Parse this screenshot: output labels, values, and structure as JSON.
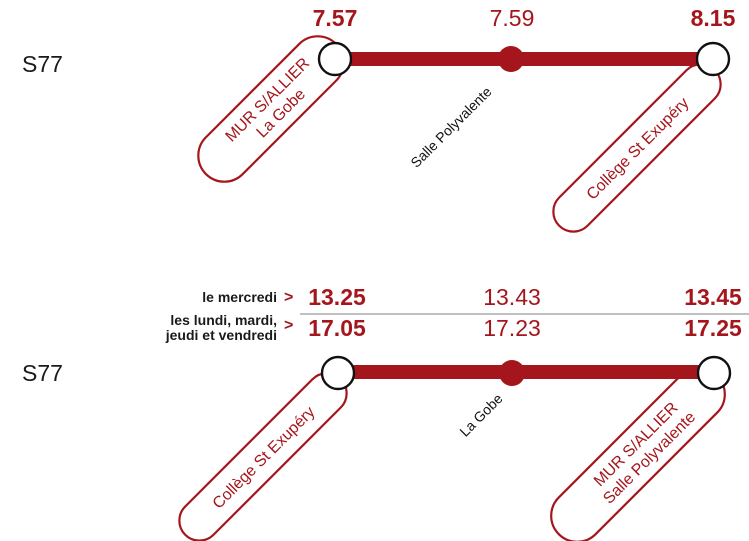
{
  "colors": {
    "accent": "#a5161c",
    "text": "#1a1a1a"
  },
  "top_route": {
    "route_label": "S77",
    "times": {
      "start": "7.57",
      "mid": "7.59",
      "end": "8.15"
    },
    "stops": {
      "start_line1": "MUR S/ALLIER",
      "start_line2": "La Gobe",
      "mid": "Salle Polyvalente",
      "end": "Collège St Exupéry"
    }
  },
  "bottom_route": {
    "route_label": "S77",
    "rows": [
      {
        "days": "le mercredi",
        "arrow": ">",
        "start": "13.25",
        "mid": "13.43",
        "end": "13.45"
      },
      {
        "days_line1": "les lundi, mardi,",
        "days_line2": "jeudi et vendredi",
        "arrow": ">",
        "start": "17.05",
        "mid": "17.23",
        "end": "17.25"
      }
    ],
    "stops": {
      "start": "Collège St Exupéry",
      "mid": "La Gobe",
      "end_line1": "MUR S/ALLIER",
      "end_line2": "Salle Polyvalente"
    }
  }
}
